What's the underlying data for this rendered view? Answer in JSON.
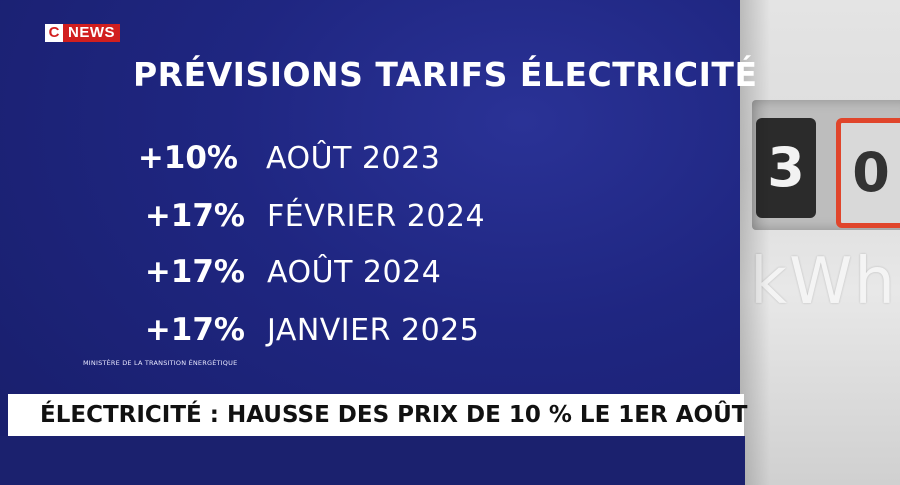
{
  "brand": {
    "logo_c": "C",
    "logo_news": "NEWS",
    "accent": "#d11f1f"
  },
  "title": "PRÉVISIONS TARIFS ÉLECTRICITÉ",
  "forecasts": [
    {
      "change": "+10%",
      "date": "AOÛT 2023"
    },
    {
      "change": "+17%",
      "date": "FÉVRIER 2024"
    },
    {
      "change": "+17%",
      "date": "AOÛT 2024"
    },
    {
      "change": "+17%",
      "date": "JANVIER 2025"
    }
  ],
  "source": "MINISTÈRE DE LA TRANSITION ÉNERGÉTIQUE",
  "ticker": "ÉLECTRICITÉ : HAUSSE DES PRIX DE 10 % LE 1ER AOÛT",
  "photo": {
    "digit1": "3",
    "digit2": "0",
    "unit_text": "kWh"
  },
  "colors": {
    "background": "#1f2681",
    "ticker_bg": "#ffffff",
    "text": "#ffffff"
  }
}
